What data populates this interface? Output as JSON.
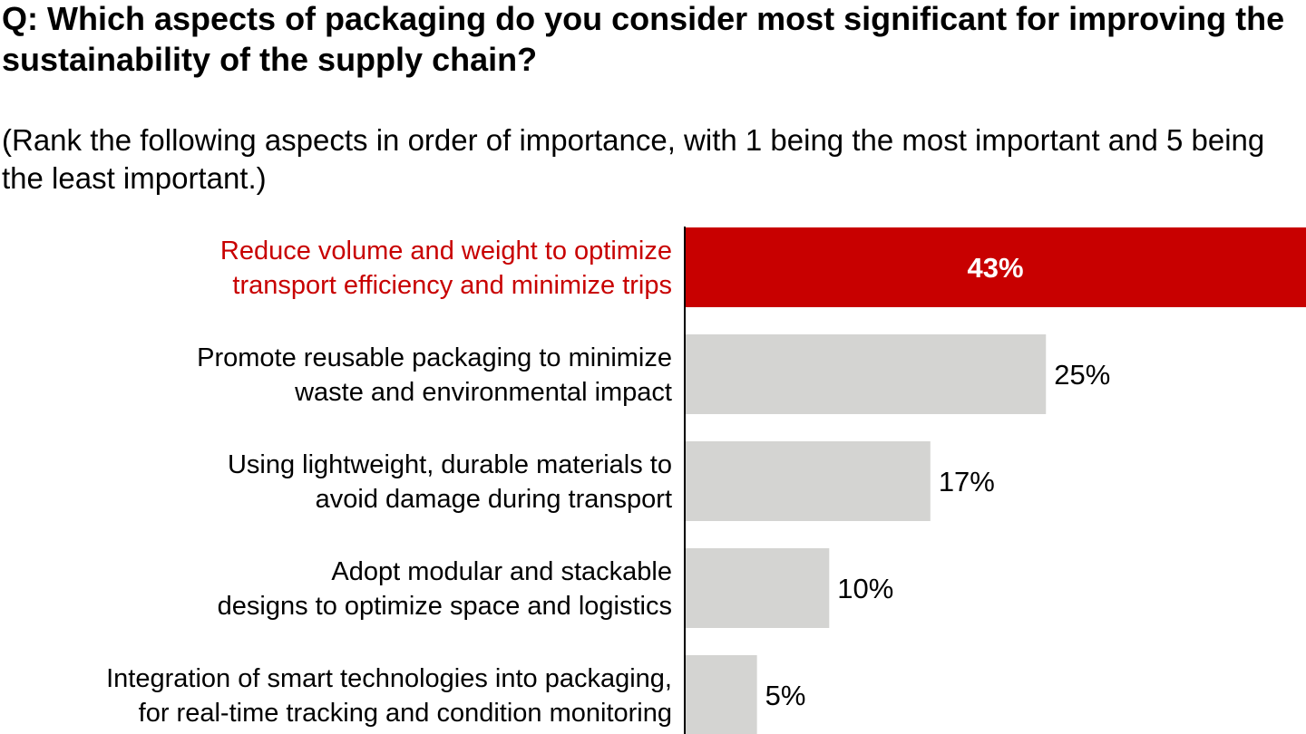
{
  "title": "Q: Which aspects of packaging do you consider most significant for improving the sustainability of the supply chain?",
  "subtitle": "(Rank the following aspects in order of importance, with 1 being the most important and 5 being the least important.)",
  "colors": {
    "highlight": "#c80000",
    "bar": "#d4d4d2",
    "axis": "#000000",
    "highlight_label": "#ffffff",
    "text": "#000000"
  },
  "chart_data": {
    "type": "bar",
    "orientation": "horizontal",
    "categories": [
      [
        "Reduce volume and weight to optimize",
        "transport efficiency and minimize trips"
      ],
      [
        "Promote reusable packaging to minimize",
        "waste and environmental impact"
      ],
      [
        "Using lightweight, durable materials to",
        "avoid damage during transport"
      ],
      [
        "Adopt modular and stackable",
        "designs to optimize space and logistics"
      ],
      [
        "Integration of smart technologies into packaging,",
        "for real-time tracking and condition monitoring"
      ]
    ],
    "values": [
      43,
      25,
      17,
      10,
      5
    ],
    "value_labels": [
      "43%",
      "25%",
      "17%",
      "10%",
      "5%"
    ],
    "highlight_index": 0,
    "xlim": [
      0,
      43
    ],
    "grid": false,
    "legend": "none"
  }
}
